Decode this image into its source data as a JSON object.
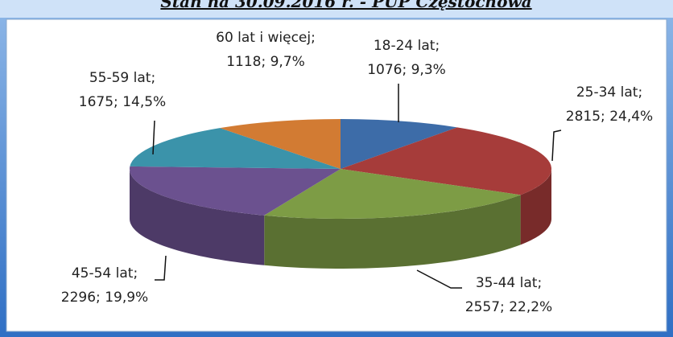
{
  "chart_data": {
    "type": "pie3d",
    "title": "Stan na 30.09.2016 r. - PUP Częstochowa",
    "categories": [
      "18-24 lat",
      "25-34 lat",
      "35-44 lat",
      "45-54 lat",
      "55-59 lat",
      "60 lat i więcej"
    ],
    "values": [
      1076,
      2815,
      2557,
      2296,
      1675,
      1118
    ],
    "value_labels": [
      "1076; 9,3%",
      "2815; 24,4%",
      "2557; 22,2%",
      "2296; 19,9%",
      "1675; 14,5%",
      "1118; 9,7%"
    ],
    "colors": [
      "#3d6ca8",
      "#a63c3a",
      "#7d9c45",
      "#6b518f",
      "#3b93aa",
      "#d27b33"
    ]
  }
}
